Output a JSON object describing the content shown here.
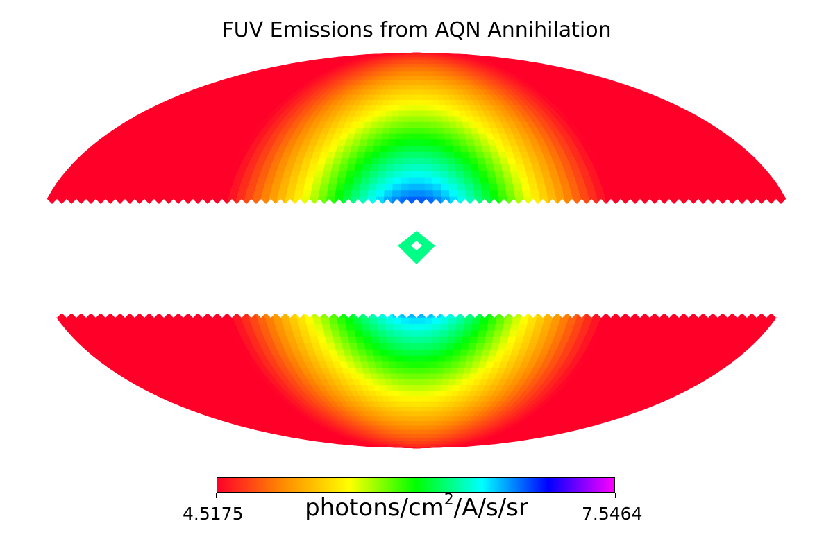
{
  "chart_data": {
    "type": "heatmap",
    "projection": "mollweide",
    "title": "FUV Emissions from AQN Annihilation",
    "colorbar": {
      "label_prefix": "photons/cm",
      "label_superscript": "2",
      "label_suffix": "/A/s/sr",
      "min_label": "4.5175",
      "max_label": "7.5464",
      "min": 4.5175,
      "max": 7.5464,
      "colormap": "gist_rainbow",
      "colors": [
        "#ff0029",
        "#ff8c00",
        "#ffff00",
        "#00ff00",
        "#00ffff",
        "#0000ff",
        "#ff00ff"
      ]
    },
    "masked_band_latitude_deg": [
      -13,
      18
    ],
    "center_feature": {
      "lon_deg": 0,
      "lat_deg": 0,
      "value": 6.3
    },
    "peak_value_at_galactic_center": 7.5464,
    "background_value": 4.5175
  }
}
